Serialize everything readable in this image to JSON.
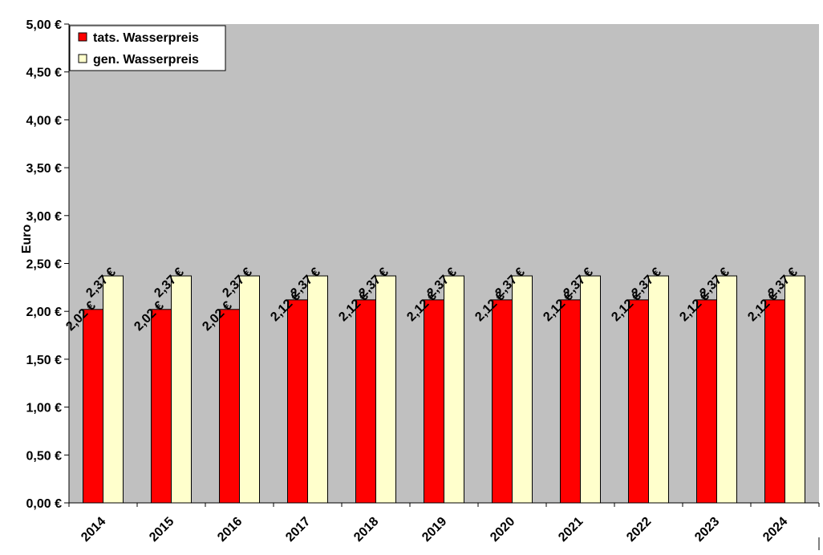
{
  "chart_data": {
    "type": "bar",
    "categories": [
      "2014",
      "2015",
      "2016",
      "2017",
      "2018",
      "2019",
      "2020",
      "2021",
      "2022",
      "2023",
      "2024"
    ],
    "series": [
      {
        "name": "tats. Wasserpreis",
        "color": "#ff0000",
        "values": [
          2.02,
          2.02,
          2.02,
          2.12,
          2.12,
          2.12,
          2.12,
          2.12,
          2.12,
          2.12,
          2.12
        ],
        "labels": [
          "2,02 €",
          "2,02 €",
          "2,02 €",
          "2,12 €",
          "2,12 €",
          "2,12 €",
          "2,12 €",
          "2,12 €",
          "2,12 €",
          "2,12 €",
          "2,12 €"
        ]
      },
      {
        "name": "gen. Wasserpreis",
        "color": "#ffffcc",
        "values": [
          2.37,
          2.37,
          2.37,
          2.37,
          2.37,
          2.37,
          2.37,
          2.37,
          2.37,
          2.37,
          2.37
        ],
        "labels": [
          "2,37 €",
          "2,37 €",
          "2,37 €",
          "2,37 €",
          "2,37 €",
          "2,37 €",
          "2,37 €",
          "2,37 €",
          "2,37 €",
          "2,37 €",
          "2,37 €"
        ]
      }
    ],
    "ylim": [
      0,
      5
    ],
    "yticks": [
      0,
      0.5,
      1,
      1.5,
      2,
      2.5,
      3,
      3.5,
      4,
      4.5,
      5
    ],
    "ytick_labels": [
      "0,00 €",
      "0,50 €",
      "1,00 €",
      "1,50 €",
      "2,00 €",
      "2,50 €",
      "3,00 €",
      "3,50 €",
      "4,00 €",
      "4,50 €",
      "5,00 €"
    ],
    "ylabel": "Euro",
    "xlabel": "",
    "plot_background": "#c0c0c0",
    "grid": false,
    "legend_position": "top-left"
  }
}
